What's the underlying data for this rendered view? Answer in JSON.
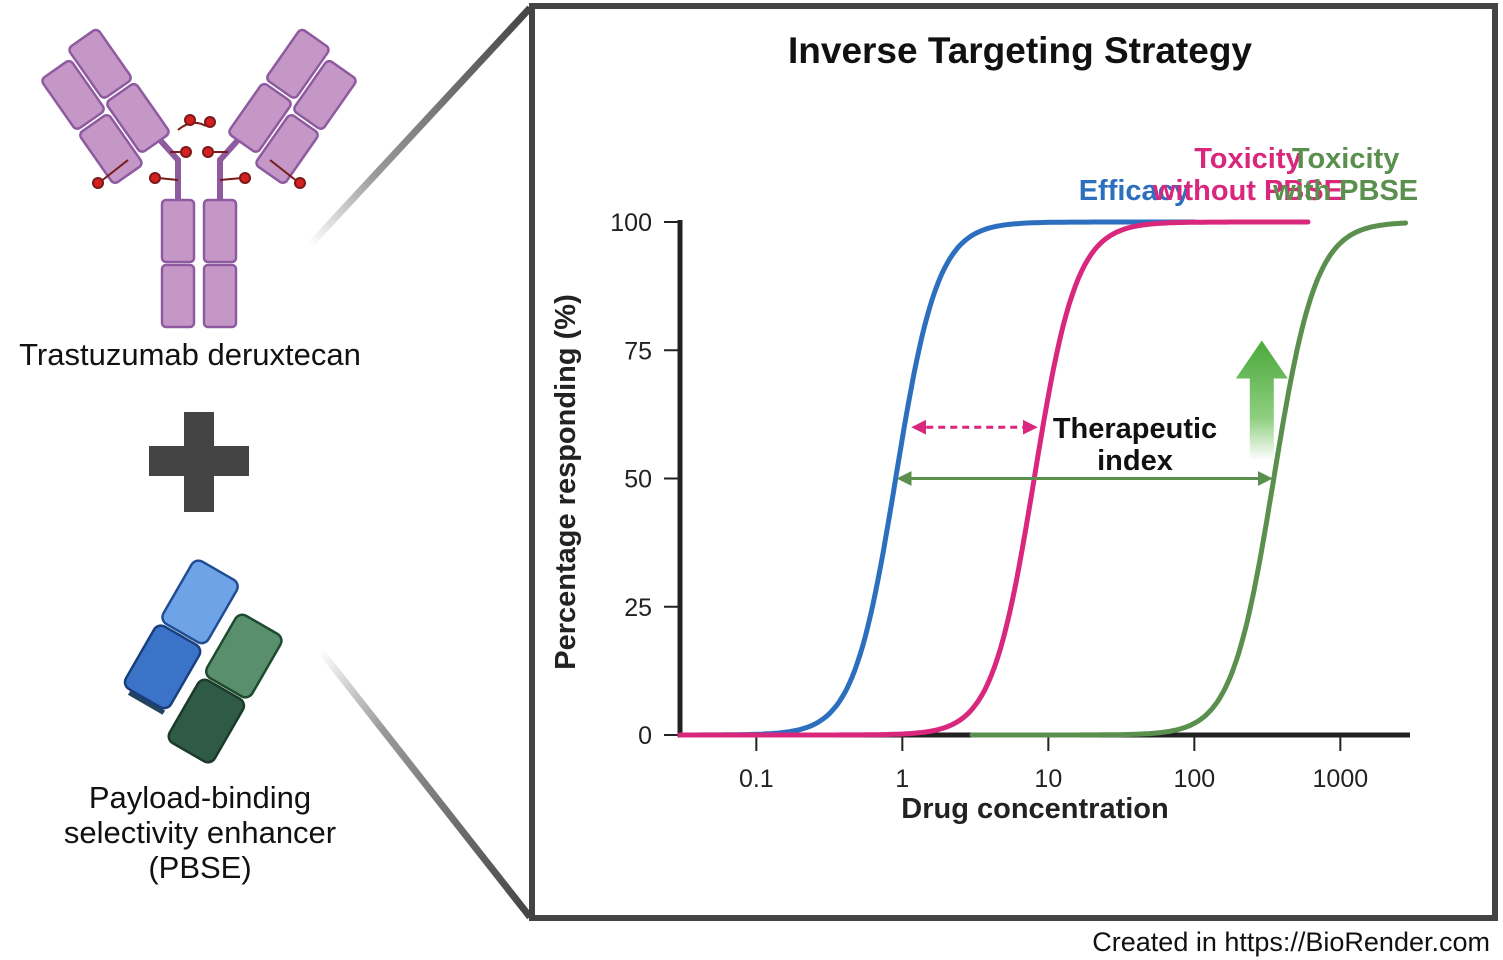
{
  "left": {
    "antibody_label": "Trastuzumab deruxtecan",
    "pbse_label_lines": [
      "Payload-binding",
      "selectivity enhancer",
      "(PBSE)"
    ]
  },
  "credit": "Created in https://BioRender.com",
  "annotation_lines": [
    "Therapeutic",
    "index"
  ],
  "colors": {
    "efficacy": "#2d6fbf",
    "toxicity_without": "#d8277d",
    "toxicity_with": "#5a8f4e",
    "arrow_up": "#4aa83b",
    "frame": "#444444",
    "antibody": "#c497c6"
  },
  "chart_data": {
    "type": "line",
    "title": "Inverse Targeting Strategy",
    "xlabel": "Drug concentration",
    "ylabel": "Percentage responding (%)",
    "x_scale": "log",
    "xlim": [
      0.03,
      3000
    ],
    "ylim": [
      0,
      100
    ],
    "x_ticks": [
      0.1,
      1,
      10,
      100,
      1000
    ],
    "x_tick_labels": [
      "0.1",
      "1",
      "10",
      "100",
      "1000"
    ],
    "y_ticks": [
      0,
      25,
      50,
      75,
      100
    ],
    "y_tick_labels": [
      "0",
      "25",
      "50",
      "75",
      "100"
    ],
    "series": [
      {
        "name": "Efficacy",
        "label_lines": [
          "Efficacy"
        ],
        "ec50": 0.9,
        "x_min": 0.03,
        "x_max": 100,
        "color": "#2d6fbf"
      },
      {
        "name": "Toxicity without PBSE",
        "label_lines": [
          "Toxicity",
          "without PBSE"
        ],
        "ec50": 8,
        "x_min": 0.03,
        "x_max": 600,
        "color": "#d8277d"
      },
      {
        "name": "Toxicity with PBSE",
        "label_lines": [
          "Toxicity",
          "with PBSE"
        ],
        "ec50": 350,
        "x_min": 3,
        "x_max": 2800,
        "color": "#5a8f4e"
      }
    ],
    "grid": false
  }
}
